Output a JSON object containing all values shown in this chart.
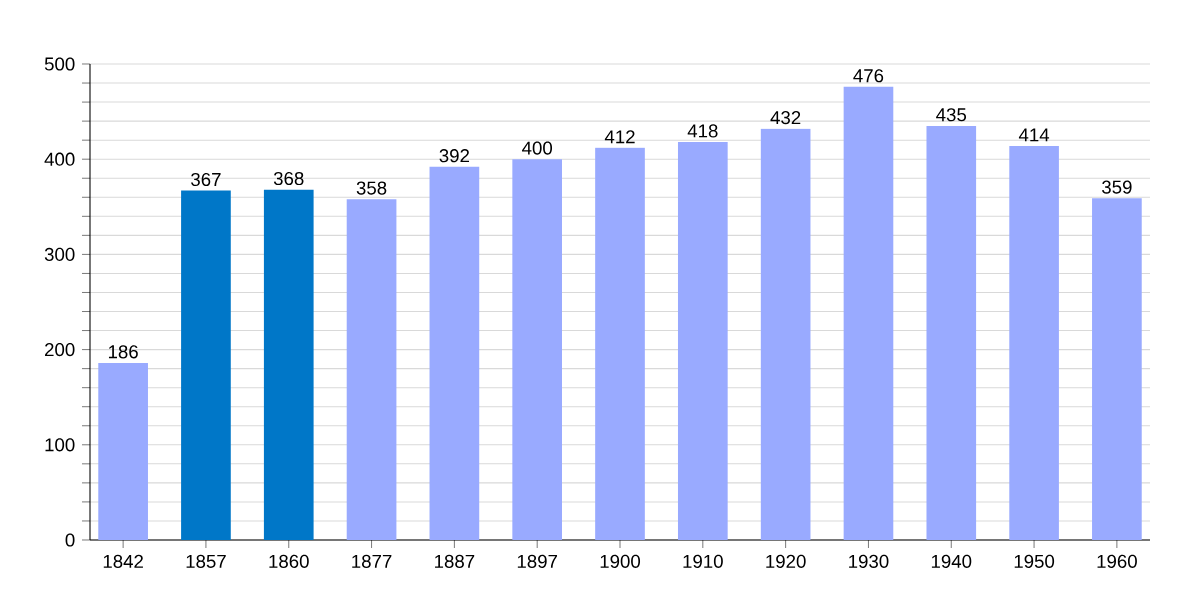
{
  "chart_data": {
    "type": "bar",
    "categories": [
      "1842",
      "1857",
      "1860",
      "1877",
      "1887",
      "1897",
      "1900",
      "1910",
      "1920",
      "1930",
      "1940",
      "1950",
      "1960"
    ],
    "values": [
      186,
      367,
      368,
      358,
      392,
      400,
      412,
      418,
      432,
      476,
      435,
      414,
      359
    ],
    "colors": [
      "#99aaff",
      "#0077c8",
      "#0077c8",
      "#99aaff",
      "#99aaff",
      "#99aaff",
      "#99aaff",
      "#99aaff",
      "#99aaff",
      "#99aaff",
      "#99aaff",
      "#99aaff",
      "#99aaff"
    ],
    "ylim": [
      0,
      500
    ],
    "yticks": [
      0,
      {
        "value": 20,
        "label": null
      },
      {
        "value": 40,
        "label": null
      },
      {
        "value": 60,
        "label": null
      },
      {
        "value": 80,
        "label": null
      },
      100,
      {
        "value": 120,
        "label": null
      },
      {
        "value": 140,
        "label": null
      },
      {
        "value": 160,
        "label": null
      },
      {
        "value": 180,
        "label": null
      },
      200,
      {
        "value": 220,
        "label": null
      },
      {
        "value": 240,
        "label": null
      },
      {
        "value": 260,
        "label": null
      },
      {
        "value": 280,
        "label": null
      },
      300,
      {
        "value": 320,
        "label": null
      },
      {
        "value": 340,
        "label": null
      },
      {
        "value": 360,
        "label": null
      },
      {
        "value": 380,
        "label": null
      },
      400,
      {
        "value": 420,
        "label": null
      },
      {
        "value": 440,
        "label": null
      },
      {
        "value": 460,
        "label": null
      },
      {
        "value": 480,
        "label": null
      },
      500
    ],
    "grid": "y",
    "data_labels": true
  }
}
